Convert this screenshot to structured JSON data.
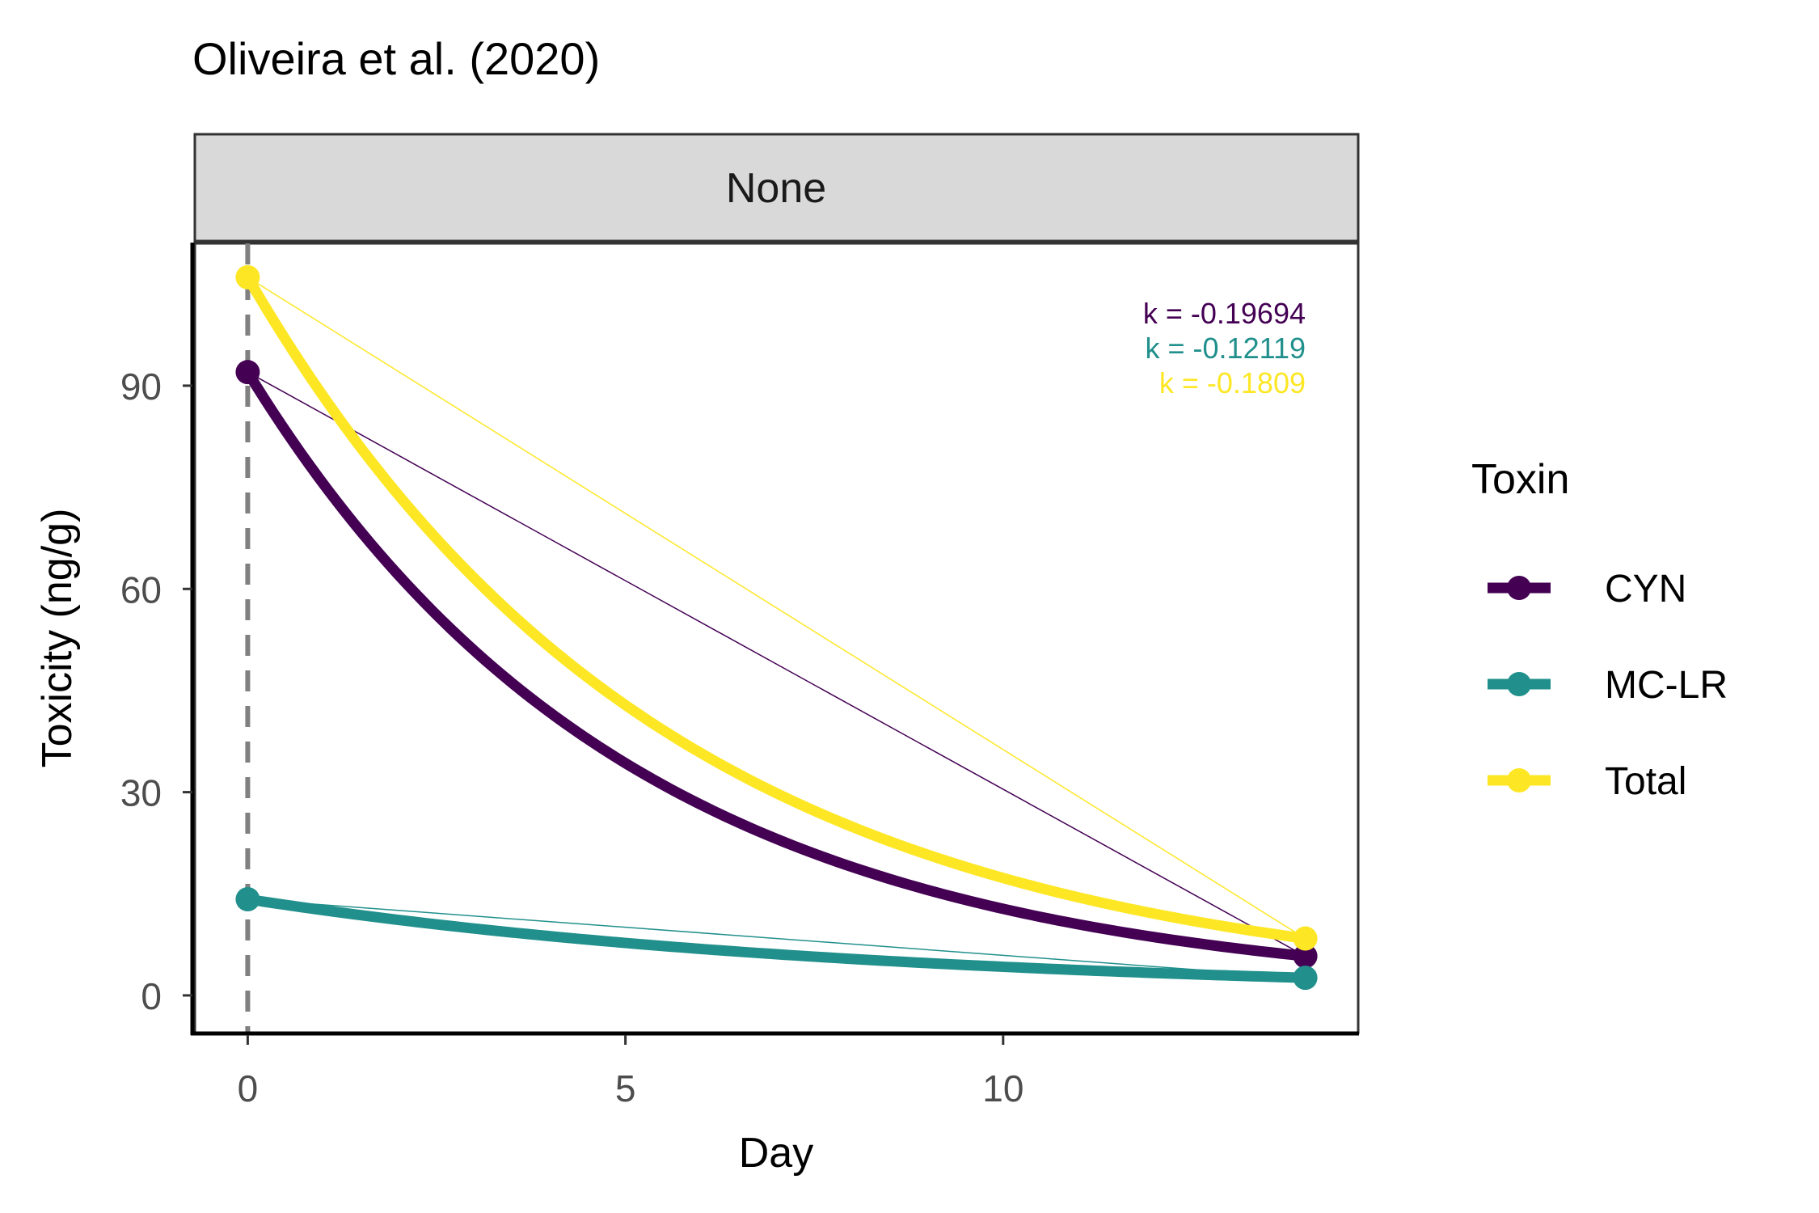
{
  "chart_data": {
    "type": "line",
    "title": "Oliveira et al. (2020)",
    "facet_label": "None",
    "xlabel": "Day",
    "ylabel": "Toxicity (ng/g)",
    "xlim": [
      -0.7,
      14.7
    ],
    "ylim": [
      -5.5,
      111
    ],
    "x_ticks": [
      0,
      5,
      10
    ],
    "y_ticks": [
      0,
      30,
      60,
      90
    ],
    "vline_x": 0,
    "legend": {
      "title": "Toxin",
      "position": "right"
    },
    "series": [
      {
        "name": "CYN",
        "color": "#440154",
        "x": [
          0,
          14
        ],
        "y": [
          92,
          5.8
        ],
        "k": -0.19694,
        "k_label": "k = -0.19694"
      },
      {
        "name": "MC-LR",
        "color": "#21908C",
        "x": [
          0,
          14
        ],
        "y": [
          14.2,
          2.6
        ],
        "k": -0.12119,
        "k_label": "k = -0.12119"
      },
      {
        "name": "Total",
        "color": "#FDE725",
        "x": [
          0,
          14
        ],
        "y": [
          106,
          8.4
        ],
        "k": -0.1809,
        "k_label": "k = -0.1809"
      }
    ]
  }
}
